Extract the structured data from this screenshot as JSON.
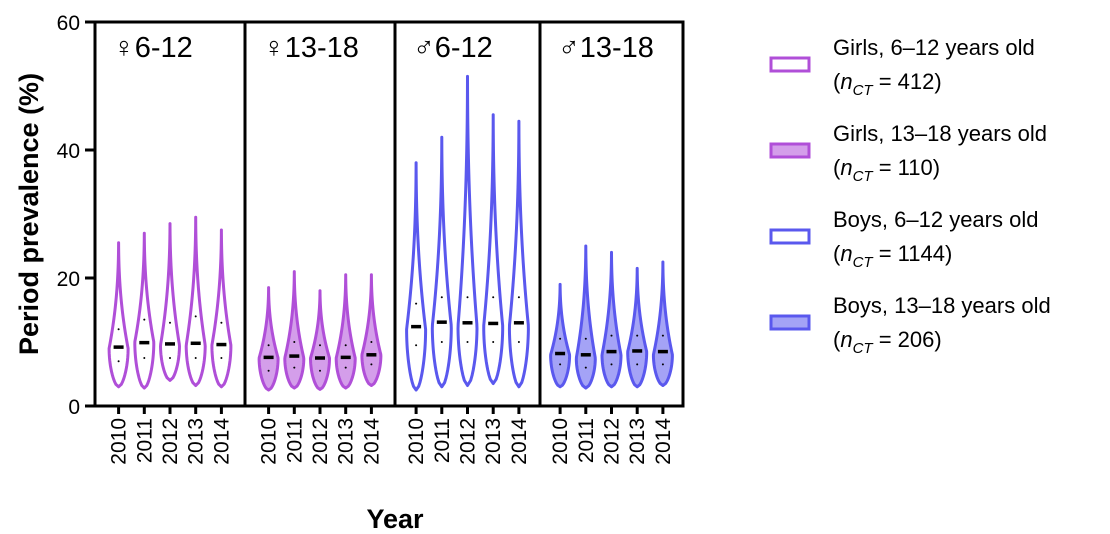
{
  "chart_data": {
    "type": "violin",
    "ylabel": "Period prevalence (%)",
    "xlabel": "Year",
    "ylim": [
      0,
      60
    ],
    "yticks": [
      0,
      20,
      40,
      60
    ],
    "years": [
      "2010",
      "2011",
      "2012",
      "2013",
      "2014"
    ],
    "panels": [
      {
        "label": "♀6-12",
        "series": "Girls, 6–12 years old",
        "color": "#b04fd8",
        "filled": false,
        "violins": [
          {
            "year": "2010",
            "min": 3,
            "max": 25.5,
            "median": 9.2,
            "q1": 7,
            "q3": 12,
            "mode": 9
          },
          {
            "year": "2011",
            "min": 2.8,
            "max": 27,
            "median": 9.9,
            "q1": 7.5,
            "q3": 13.5,
            "mode": 10
          },
          {
            "year": "2012",
            "min": 4,
            "max": 28.5,
            "median": 9.7,
            "q1": 7.5,
            "q3": 13,
            "mode": 9.5
          },
          {
            "year": "2013",
            "min": 3.2,
            "max": 29.5,
            "median": 9.8,
            "q1": 7.5,
            "q3": 14,
            "mode": 9.5
          },
          {
            "year": "2014",
            "min": 3,
            "max": 27.5,
            "median": 9.6,
            "q1": 7.5,
            "q3": 13,
            "mode": 9.5
          }
        ]
      },
      {
        "label": "♀13-18",
        "series": "Girls, 13–18 years old",
        "color": "#b04fd8",
        "filled": true,
        "violins": [
          {
            "year": "2010",
            "min": 2.5,
            "max": 18.5,
            "median": 7.6,
            "q1": 5.5,
            "q3": 9.5,
            "mode": 7.5
          },
          {
            "year": "2011",
            "min": 2.8,
            "max": 21,
            "median": 7.8,
            "q1": 6,
            "q3": 10,
            "mode": 7.5
          },
          {
            "year": "2012",
            "min": 2.6,
            "max": 18,
            "median": 7.5,
            "q1": 5.5,
            "q3": 9.5,
            "mode": 7.5
          },
          {
            "year": "2013",
            "min": 2.8,
            "max": 20.5,
            "median": 7.6,
            "q1": 6,
            "q3": 9.5,
            "mode": 7.5
          },
          {
            "year": "2014",
            "min": 3.2,
            "max": 20.5,
            "median": 8,
            "q1": 6.5,
            "q3": 10,
            "mode": 8
          }
        ]
      },
      {
        "label": "♂6-12",
        "series": "Boys, 6–12 years old",
        "color": "#5a58ee",
        "filled": false,
        "violins": [
          {
            "year": "2010",
            "min": 2.5,
            "max": 38,
            "median": 12.4,
            "q1": 9.5,
            "q3": 16,
            "mode": 12
          },
          {
            "year": "2011",
            "min": 3,
            "max": 42,
            "median": 13.1,
            "q1": 10,
            "q3": 17,
            "mode": 12.5
          },
          {
            "year": "2012",
            "min": 3.2,
            "max": 51.5,
            "median": 13,
            "q1": 10,
            "q3": 17,
            "mode": 12.5
          },
          {
            "year": "2013",
            "min": 3.5,
            "max": 45.5,
            "median": 12.9,
            "q1": 10,
            "q3": 17,
            "mode": 12.5
          },
          {
            "year": "2014",
            "min": 3,
            "max": 44.5,
            "median": 13,
            "q1": 10,
            "q3": 17,
            "mode": 12.5
          }
        ]
      },
      {
        "label": "♂13-18",
        "series": "Boys, 13–18 years old",
        "color": "#5a58ee",
        "filled": true,
        "violins": [
          {
            "year": "2010",
            "min": 3,
            "max": 19,
            "median": 8.2,
            "q1": 6.5,
            "q3": 10.5,
            "mode": 8
          },
          {
            "year": "2011",
            "min": 2.8,
            "max": 25,
            "median": 8,
            "q1": 6,
            "q3": 10.5,
            "mode": 7.5
          },
          {
            "year": "2012",
            "min": 3,
            "max": 24,
            "median": 8.5,
            "q1": 6.5,
            "q3": 11,
            "mode": 8
          },
          {
            "year": "2013",
            "min": 3,
            "max": 21.5,
            "median": 8.6,
            "q1": 6.5,
            "q3": 11,
            "mode": 8.5
          },
          {
            "year": "2014",
            "min": 3.2,
            "max": 22.5,
            "median": 8.5,
            "q1": 6.5,
            "q3": 11,
            "mode": 8
          }
        ]
      }
    ],
    "legend": [
      {
        "line1": "Girls, 6–12 years old",
        "n_prefix": "(",
        "n_symbol": "n",
        "n_sub": "CT",
        "n_value": " = 412)",
        "color": "#b04fd8",
        "filled": false
      },
      {
        "line1": "Girls, 13–18 years old",
        "n_prefix": "(",
        "n_symbol": "n",
        "n_sub": "CT",
        "n_value": " = 110)",
        "color": "#b04fd8",
        "filled": true
      },
      {
        "line1": "Boys, 6–12 years old",
        "n_prefix": "(",
        "n_symbol": "n",
        "n_sub": "CT",
        "n_value": " = 1144)",
        "color": "#5a58ee",
        "filled": false
      },
      {
        "line1": "Boys, 13–18 years old",
        "n_prefix": "(",
        "n_symbol": "n",
        "n_sub": "CT",
        "n_value": " = 206)",
        "color": "#5a58ee",
        "filled": true
      }
    ],
    "legend_position": "right",
    "grid": false
  }
}
